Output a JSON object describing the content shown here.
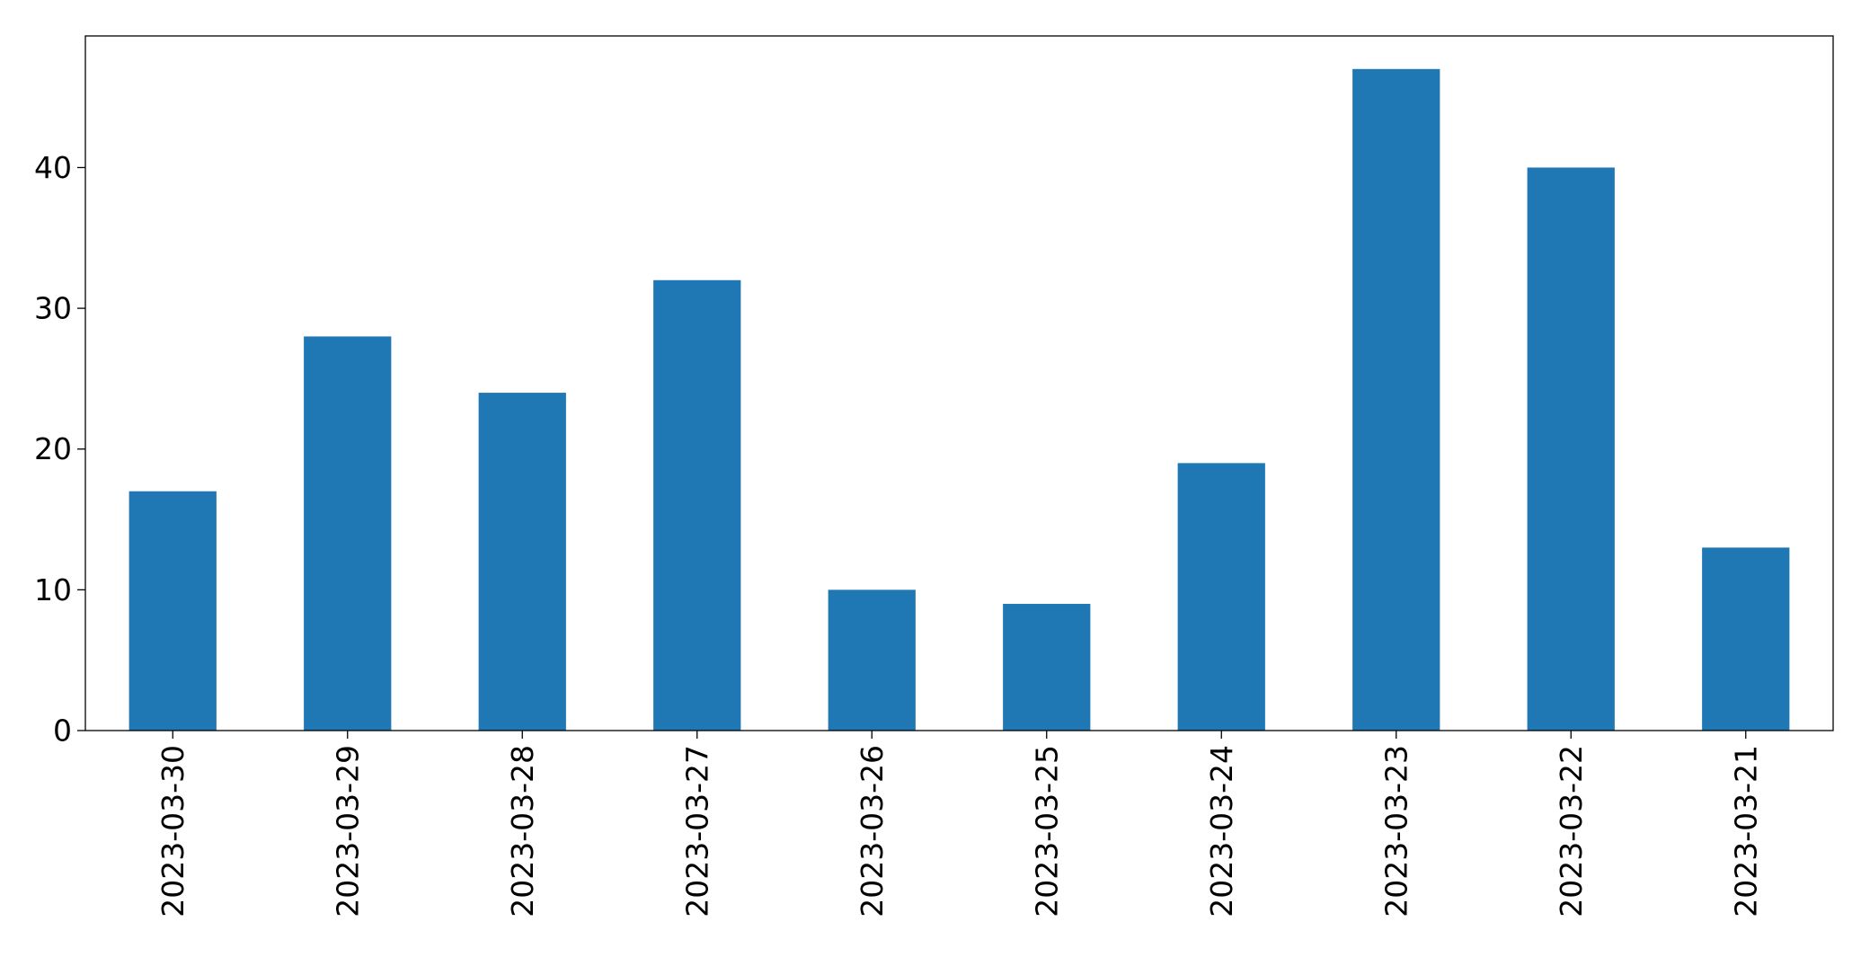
{
  "chart_data": {
    "type": "bar",
    "title": "",
    "xlabel": "",
    "ylabel": "",
    "categories": [
      "2023-03-30",
      "2023-03-29",
      "2023-03-28",
      "2023-03-27",
      "2023-03-26",
      "2023-03-25",
      "2023-03-24",
      "2023-03-23",
      "2023-03-22",
      "2023-03-21"
    ],
    "values": [
      17,
      28,
      24,
      32,
      10,
      9,
      19,
      47,
      40,
      13
    ],
    "ylim": [
      0,
      49.35
    ],
    "yticks": [
      0,
      10,
      20,
      30,
      40
    ],
    "bar_color": "#1f77b4",
    "grid": false,
    "legend": false
  }
}
